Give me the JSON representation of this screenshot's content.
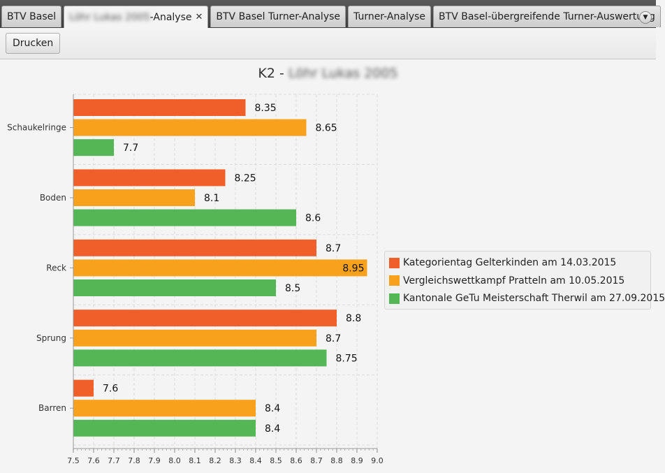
{
  "tabs": [
    {
      "label": "BTV Basel"
    },
    {
      "label_obscured": "Löhr Lukas 2005",
      "label": "-Analyse",
      "close": "✕"
    },
    {
      "label": "BTV Basel Turner-Analyse"
    },
    {
      "label": "Turner-Analyse"
    },
    {
      "label": "BTV Basel-übergreifende Turner-Auswertung"
    }
  ],
  "toolbar": {
    "print_label": "Drucken"
  },
  "chart_data": {
    "type": "bar",
    "orientation": "horizontal",
    "title_prefix": "K2 - ",
    "title_obscured": "Löhr Lukas 2005",
    "categories": [
      "Schaukelringe",
      "Boden",
      "Reck",
      "Sprung",
      "Barren"
    ],
    "xlim": [
      7.5,
      9.0
    ],
    "x_ticks": [
      "7.5",
      "7.6",
      "7.7",
      "7.8",
      "7.9",
      "8.0",
      "8.1",
      "8.2",
      "8.3",
      "8.4",
      "8.5",
      "8.6",
      "8.7",
      "8.8",
      "8.9",
      "9.0"
    ],
    "grid": true,
    "legend_position": "right",
    "series": [
      {
        "name": "Kategorientag Gelterkinden am 14.03.2015",
        "color": "#f05f2a",
        "values": [
          8.35,
          8.25,
          8.7,
          8.8,
          7.6
        ]
      },
      {
        "name": "Vergleichswettkampf Pratteln am 10.05.2015",
        "color": "#f8a11c",
        "values": [
          8.65,
          8.1,
          8.95,
          8.7,
          8.4
        ]
      },
      {
        "name": "Kantonale GeTu Meisterschaft Therwil am 27.09.2015",
        "color": "#55b655",
        "values": [
          7.7,
          8.6,
          8.5,
          8.75,
          8.4
        ]
      }
    ]
  }
}
